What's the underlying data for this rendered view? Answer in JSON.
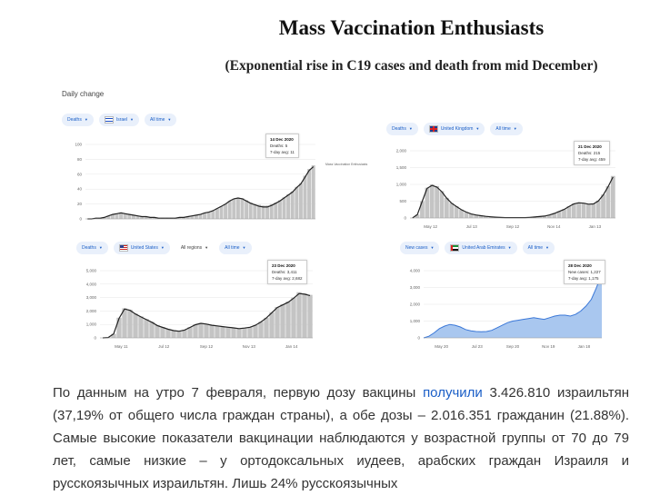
{
  "figure": {
    "title": "Mass Vaccination Enthusiasts",
    "subtitle": "(Exponential rise in C19 cases and death from mid December)",
    "daily_label": "Daily change",
    "side_note": "Mass Vaccination Enthusiasts"
  },
  "panels": {
    "israel": {
      "chips": [
        "Deaths",
        "Israel",
        "All time"
      ],
      "tooltip": {
        "date": "14 Dec 2020",
        "line1": "Deaths: 5",
        "line2": "7-day avg: 11"
      }
    },
    "uk": {
      "chips": [
        "Deaths",
        "United Kingdom",
        "All time"
      ],
      "tooltip": {
        "date": "21 Dec 2020",
        "line1": "Deaths: 215",
        "line2": "7-day avg: 459"
      }
    },
    "us": {
      "chips": [
        "Deaths",
        "United States",
        "All regions",
        "All time"
      ],
      "tooltip": {
        "date": "23 Dec 2020",
        "line1": "Deaths: 3,411",
        "line2": "7-day avg: 2,682"
      }
    },
    "uae": {
      "chips": [
        "New cases",
        "United Arab Emirates",
        "All time"
      ],
      "tooltip": {
        "date": "28 Dec 2020",
        "line1": "New cases: 1,227",
        "line2": "7-day avg: 1,175"
      }
    }
  },
  "chart_data": [
    {
      "type": "bar",
      "title": "Israel",
      "ylim": [
        0,
        100
      ],
      "yticks": [
        "0",
        "20",
        "40",
        "60",
        "80",
        "100"
      ],
      "xticks": [],
      "bars": [
        0,
        0,
        1,
        1,
        2,
        4,
        6,
        7,
        8,
        7,
        6,
        5,
        4,
        3,
        3,
        2,
        2,
        1,
        1,
        1,
        1,
        1,
        2,
        2,
        3,
        4,
        5,
        6,
        8,
        9,
        11,
        14,
        17,
        20,
        24,
        27,
        28,
        28,
        25,
        22,
        20,
        19,
        18,
        18,
        20,
        22,
        25,
        29,
        33,
        37,
        43,
        48,
        58,
        67,
        72
      ],
      "avg": [
        0,
        0,
        1,
        1,
        2,
        4,
        6,
        7,
        8,
        7,
        6,
        5,
        4,
        3,
        3,
        2,
        2,
        1,
        1,
        1,
        1,
        1,
        2,
        2,
        3,
        4,
        5,
        6,
        8,
        9,
        11,
        14,
        17,
        20,
        24,
        27,
        28,
        27,
        24,
        21,
        19,
        17,
        16,
        16,
        18,
        21,
        24,
        28,
        32,
        36,
        42,
        47,
        56,
        65,
        70
      ]
    },
    {
      "type": "bar",
      "title": "United Kingdom",
      "ylim": [
        0,
        2000
      ],
      "yticks": [
        "0",
        "500",
        "1,000",
        "1,500",
        "2,000"
      ],
      "xticks": [
        "May 12",
        "Jul 13",
        "Sep 12",
        "Nov 14",
        "Jan 13"
      ],
      "bars": [
        0,
        100,
        500,
        900,
        1000,
        950,
        800,
        600,
        450,
        350,
        250,
        180,
        120,
        90,
        70,
        50,
        35,
        25,
        15,
        12,
        10,
        10,
        10,
        12,
        20,
        30,
        45,
        60,
        90,
        140,
        200,
        260,
        350,
        430,
        460,
        450,
        420,
        430,
        520,
        700,
        950,
        1250
      ],
      "avg": [
        0,
        100,
        500,
        880,
        970,
        920,
        780,
        590,
        440,
        340,
        245,
        175,
        118,
        88,
        68,
        48,
        34,
        24,
        15,
        12,
        10,
        10,
        10,
        12,
        20,
        30,
        44,
        58,
        88,
        136,
        195,
        255,
        340,
        420,
        450,
        440,
        410,
        420,
        505,
        680,
        930,
        1220
      ]
    },
    {
      "type": "bar",
      "title": "United States",
      "ylim": [
        0,
        5000
      ],
      "yticks": [
        "0",
        "1,000",
        "2,000",
        "3,000",
        "4,000",
        "5,000"
      ],
      "xticks": [
        "May 11",
        "Jul 12",
        "Sep 12",
        "Nov 13",
        "Jan 14"
      ],
      "bars": [
        0,
        30,
        300,
        1500,
        2200,
        2100,
        1800,
        1600,
        1400,
        1200,
        950,
        800,
        650,
        550,
        500,
        600,
        800,
        1000,
        1100,
        1050,
        950,
        900,
        850,
        800,
        750,
        700,
        750,
        800,
        950,
        1200,
        1500,
        1900,
        2300,
        2500,
        2700,
        3000,
        3400,
        3300,
        3200
      ],
      "avg": [
        0,
        30,
        300,
        1450,
        2150,
        2050,
        1780,
        1560,
        1360,
        1160,
        920,
        780,
        640,
        540,
        490,
        580,
        780,
        980,
        1080,
        1030,
        940,
        890,
        840,
        790,
        740,
        690,
        730,
        790,
        940,
        1180,
        1480,
        1870,
        2260,
        2450,
        2650,
        2950,
        3300,
        3250,
        3150
      ]
    },
    {
      "type": "area",
      "title": "United Arab Emirates",
      "ylim": [
        0,
        4000
      ],
      "yticks": [
        "0",
        "1,000",
        "2,000",
        "3,000",
        "4,000"
      ],
      "xticks": [
        "May 20",
        "Jul 23",
        "Sep 20",
        "Nov 19",
        "Jan 18"
      ],
      "values": [
        0,
        100,
        300,
        550,
        700,
        800,
        750,
        650,
        500,
        420,
        380,
        360,
        380,
        450,
        600,
        750,
        900,
        1000,
        1050,
        1100,
        1150,
        1200,
        1150,
        1100,
        1200,
        1300,
        1350,
        1350,
        1300,
        1400,
        1600,
        1900,
        2300,
        3000,
        3900
      ]
    }
  ],
  "article": {
    "text_before_link": "По данным на утро 7 февраля, первую дозу вакцины ",
    "link": "получили",
    "text_after_link": " 3.426.810 израильтян (37,19% от общего числа граждан страны), а обе дозы – 2.016.351 гражданин (21.88%). Самые высокие показатели вакцинации наблюдаются у возрастной группы от 70 до 79 лет, самые низкие – у ортодоксальных иудеев, арабских граждан Израиля и русскоязычных израильтян. Лишь 24% русскоязычных"
  }
}
